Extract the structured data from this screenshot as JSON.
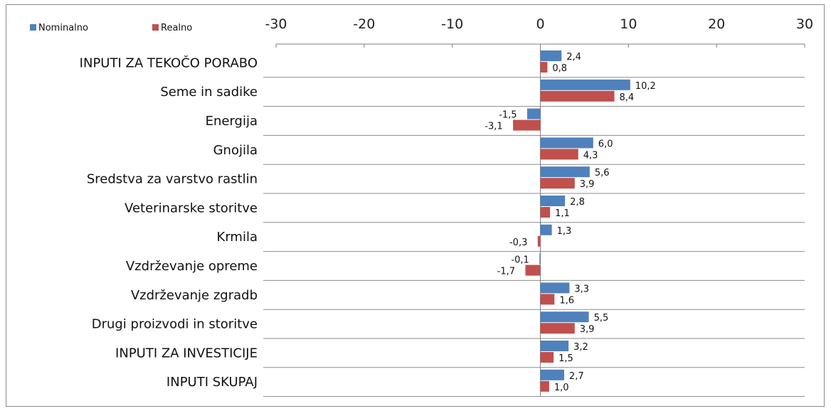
{
  "chart_data": {
    "type": "bar",
    "orientation": "horizontal",
    "x_ticks": [
      "-30",
      "-20",
      "-10",
      "0",
      "10",
      "20",
      "30"
    ],
    "xlim": [
      -30,
      30
    ],
    "axis_position": "top",
    "grid": "horizontal-lines-between-categories",
    "legend_position": "top-left",
    "categories": [
      "INPUTI ZA TEKOČO PORABO",
      "Seme in sadike",
      "Energija",
      "Gnojila",
      "Sredstva za varstvo rastlin",
      "Veterinarske storitve",
      "Krmila",
      "Vzdrževanje opreme",
      "Vzdrževanje zgradb",
      "Drugi proizvodi in storitve",
      "INPUTI ZA INVESTICIJE",
      "INPUTI SKUPAJ"
    ],
    "series": [
      {
        "name": "Nominalno",
        "color": "#4f81bd",
        "values": [
          2.4,
          10.2,
          -1.5,
          6.0,
          5.6,
          2.8,
          1.3,
          -0.1,
          3.3,
          5.5,
          3.2,
          2.7
        ],
        "labels": [
          "2,4",
          "10,2",
          "-1,5",
          "6,0",
          "5,6",
          "2,8",
          "1,3",
          "-0,1",
          "3,3",
          "5,5",
          "3,2",
          "2,7"
        ]
      },
      {
        "name": "Realno",
        "color": "#c0504d",
        "values": [
          0.8,
          8.4,
          -3.1,
          4.3,
          3.9,
          1.1,
          -0.3,
          -1.7,
          1.6,
          3.9,
          1.5,
          1.0
        ],
        "labels": [
          "0,8",
          "8,4",
          "-3,1",
          "4,3",
          "3,9",
          "1,1",
          "-0,3",
          "-1,7",
          "1,6",
          "3,9",
          "1,5",
          "1,0"
        ]
      }
    ]
  }
}
